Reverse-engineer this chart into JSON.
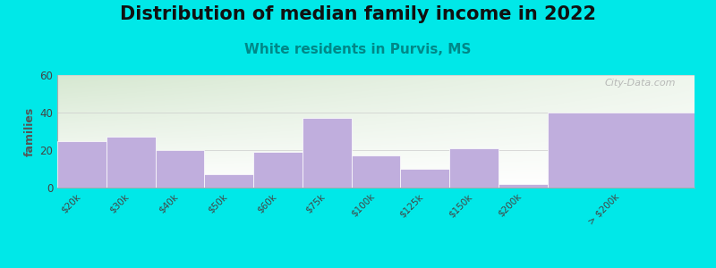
{
  "title": "Distribution of median family income in 2022",
  "subtitle": "White residents in Purvis, MS",
  "categories": [
    "$20k",
    "$30k",
    "$40k",
    "$50k",
    "$60k",
    "$75k",
    "$100k",
    "$125k",
    "$150k",
    "$200k",
    "> $200k"
  ],
  "values": [
    25,
    27,
    20,
    7,
    19,
    37,
    17,
    10,
    21,
    2,
    40
  ],
  "bar_color": "#c0aedd",
  "bar_edge_color": "#ffffff",
  "ylabel": "families",
  "ylim": [
    0,
    60
  ],
  "yticks": [
    0,
    20,
    40,
    60
  ],
  "background_color": "#00e8e8",
  "plot_bg_top_left": "#d8ead8",
  "plot_bg_top_right": "#f8f8f8",
  "plot_bg_bottom": "#ffffff",
  "title_fontsize": 15,
  "subtitle_fontsize": 11,
  "subtitle_color": "#008888",
  "watermark": "City-Data.com",
  "bar_widths": [
    1,
    1,
    1,
    1,
    1,
    1,
    1,
    1,
    1,
    1,
    3
  ],
  "bar_lefts": [
    0,
    1,
    2,
    3,
    4,
    5,
    6,
    7,
    8,
    9,
    10
  ]
}
